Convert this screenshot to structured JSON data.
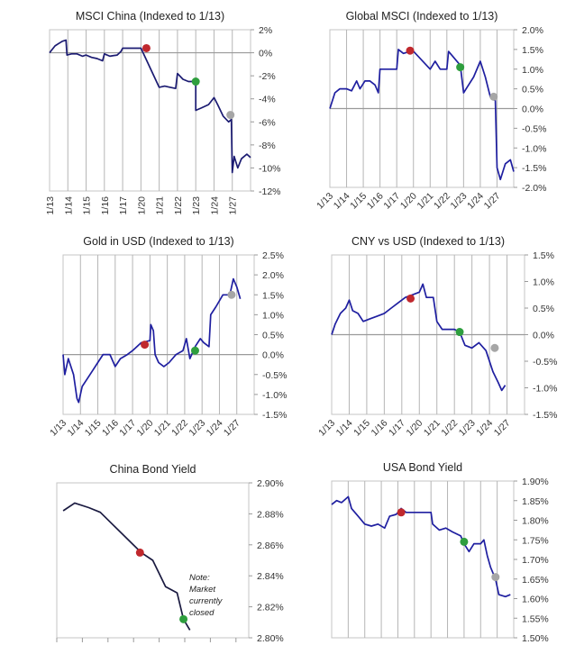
{
  "chart_data": [
    {
      "type": "line",
      "title": "MSCI China (Indexed to 1/13)",
      "categories": [
        "1/13",
        "1/14",
        "1/15",
        "1/16",
        "1/17",
        "1/20",
        "1/21",
        "1/22",
        "1/23",
        "1/24",
        "1/27"
      ],
      "xlim": [
        0,
        11
      ],
      "ylim": [
        -12,
        2
      ],
      "yticks": [
        2,
        0,
        -2,
        -4,
        -6,
        -8,
        -10,
        -12
      ],
      "yticklabels": [
        "2%",
        "0%",
        "-2%",
        "-4%",
        "-6%",
        "-8%",
        "-10%",
        "-12%"
      ],
      "zero_line": 0,
      "line_color": "#1b1b72",
      "points": [
        [
          0,
          0
        ],
        [
          0.1,
          0.2
        ],
        [
          0.3,
          0.6
        ],
        [
          0.5,
          0.8
        ],
        [
          0.7,
          1.0
        ],
        [
          0.9,
          1.1
        ],
        [
          0.95,
          -0.2
        ],
        [
          1.2,
          -0.1
        ],
        [
          1.5,
          -0.1
        ],
        [
          1.8,
          -0.3
        ],
        [
          2.0,
          -0.2
        ],
        [
          2.3,
          -0.4
        ],
        [
          2.6,
          -0.5
        ],
        [
          2.9,
          -0.7
        ],
        [
          3.0,
          -0.1
        ],
        [
          3.3,
          -0.3
        ],
        [
          3.7,
          -0.2
        ],
        [
          3.9,
          0.1
        ],
        [
          4.0,
          0.4
        ],
        [
          4.3,
          0.4
        ],
        [
          4.7,
          0.4
        ],
        [
          5.0,
          0.4
        ],
        [
          6.0,
          -3.0
        ],
        [
          6.3,
          -2.9
        ],
        [
          6.6,
          -3.0
        ],
        [
          6.9,
          -3.1
        ],
        [
          7.0,
          -1.8
        ],
        [
          7.3,
          -2.3
        ],
        [
          7.6,
          -2.5
        ],
        [
          8.0,
          -2.5
        ],
        [
          8.0,
          -5.0
        ],
        [
          8.3,
          -4.8
        ],
        [
          8.7,
          -4.5
        ],
        [
          9.0,
          -3.9
        ],
        [
          9.2,
          -4.5
        ],
        [
          9.5,
          -5.5
        ],
        [
          9.8,
          -6.0
        ],
        [
          9.95,
          -5.8
        ],
        [
          10.0,
          -10.4
        ],
        [
          10.1,
          -9.0
        ],
        [
          10.3,
          -10.0
        ],
        [
          10.5,
          -9.2
        ],
        [
          10.8,
          -8.8
        ],
        [
          11,
          -9.1
        ]
      ],
      "markers": [
        {
          "x": 5.3,
          "y": 0.4,
          "color": "#c0282d"
        },
        {
          "x": 8.0,
          "y": -2.5,
          "color": "#2e9e3e"
        },
        {
          "x": 9.9,
          "y": -5.4,
          "color": "#a6a6a6"
        }
      ]
    },
    {
      "type": "line",
      "title": "Global MSCI (Indexed to 1/13)",
      "categories": [
        "1/13",
        "1/14",
        "1/15",
        "1/16",
        "1/17",
        "1/20",
        "1/21",
        "1/22",
        "1/23",
        "1/24",
        "1/27"
      ],
      "xlim": [
        0,
        11
      ],
      "ylim": [
        -2,
        2
      ],
      "yticks": [
        2,
        1.5,
        1,
        0.5,
        0,
        -0.5,
        -1,
        -1.5,
        -2
      ],
      "yticklabels": [
        "2.0%",
        "1.5%",
        "1.0%",
        "0.5%",
        "0.0%",
        "-0.5%",
        "-1.0%",
        "-1.5%",
        "-2.0%"
      ],
      "zero_line": 0,
      "line_color": "#1f1fa0",
      "points": [
        [
          0,
          0
        ],
        [
          0.3,
          0.4
        ],
        [
          0.6,
          0.5
        ],
        [
          1,
          0.5
        ],
        [
          1.3,
          0.45
        ],
        [
          1.6,
          0.7
        ],
        [
          1.8,
          0.5
        ],
        [
          2.1,
          0.7
        ],
        [
          2.4,
          0.7
        ],
        [
          2.7,
          0.6
        ],
        [
          2.9,
          0.4
        ],
        [
          3.0,
          1.0
        ],
        [
          3.5,
          1.0
        ],
        [
          4.0,
          1.0
        ],
        [
          4.1,
          1.5
        ],
        [
          4.4,
          1.4
        ],
        [
          4.8,
          1.45
        ],
        [
          4.9,
          1.5
        ],
        [
          6.0,
          1.0
        ],
        [
          6.3,
          1.2
        ],
        [
          6.6,
          1.0
        ],
        [
          7.0,
          1.0
        ],
        [
          7.1,
          1.45
        ],
        [
          7.4,
          1.3
        ],
        [
          7.8,
          1.1
        ],
        [
          8.0,
          0.4
        ],
        [
          8.3,
          0.6
        ],
        [
          8.6,
          0.8
        ],
        [
          9.0,
          1.2
        ],
        [
          9.3,
          0.8
        ],
        [
          9.6,
          0.3
        ],
        [
          9.9,
          0.2
        ],
        [
          10.0,
          -1.5
        ],
        [
          10.2,
          -1.8
        ],
        [
          10.5,
          -1.4
        ],
        [
          10.8,
          -1.3
        ],
        [
          11,
          -1.6
        ]
      ],
      "markers": [
        {
          "x": 4.8,
          "y": 1.47,
          "color": "#c0282d"
        },
        {
          "x": 7.8,
          "y": 1.05,
          "color": "#2e9e3e"
        },
        {
          "x": 9.8,
          "y": 0.3,
          "color": "#a6a6a6"
        }
      ]
    },
    {
      "type": "line",
      "title": "Gold in USD (Indexed to 1/13)",
      "categories": [
        "1/13",
        "1/14",
        "1/15",
        "1/16",
        "1/17",
        "1/20",
        "1/21",
        "1/22",
        "1/23",
        "1/24",
        "1/27"
      ],
      "xlim": [
        0,
        11
      ],
      "ylim": [
        -1.5,
        2.5
      ],
      "yticks": [
        2.5,
        2,
        1.5,
        1,
        0.5,
        0,
        -0.5,
        -1,
        -1.5
      ],
      "yticklabels": [
        "2.5%",
        "2.0%",
        "1.5%",
        "1.0%",
        "0.5%",
        "0.0%",
        "-0.5%",
        "-1.0%",
        "-1.5%"
      ],
      "zero_line": 0,
      "line_color": "#1f1fa0",
      "points": [
        [
          0,
          0
        ],
        [
          0.1,
          -0.5
        ],
        [
          0.3,
          -0.1
        ],
        [
          0.6,
          -0.5
        ],
        [
          0.8,
          -1.1
        ],
        [
          0.9,
          -1.2
        ],
        [
          1.1,
          -0.8
        ],
        [
          1.4,
          -0.6
        ],
        [
          1.7,
          -0.4
        ],
        [
          2.0,
          -0.2
        ],
        [
          2.3,
          0
        ],
        [
          2.7,
          0
        ],
        [
          3.0,
          -0.3
        ],
        [
          3.3,
          -0.1
        ],
        [
          3.7,
          0
        ],
        [
          4.0,
          0.1
        ],
        [
          4.5,
          0.3
        ],
        [
          5.0,
          0.35
        ],
        [
          5.05,
          0.75
        ],
        [
          5.2,
          0.6
        ],
        [
          5.3,
          0
        ],
        [
          5.5,
          -0.2
        ],
        [
          5.8,
          -0.3
        ],
        [
          6.1,
          -0.2
        ],
        [
          6.5,
          0
        ],
        [
          6.9,
          0.1
        ],
        [
          7.1,
          0.4
        ],
        [
          7.3,
          -0.1
        ],
        [
          7.6,
          0.2
        ],
        [
          7.9,
          0.4
        ],
        [
          8.1,
          0.3
        ],
        [
          8.4,
          0.2
        ],
        [
          8.5,
          1.0
        ],
        [
          8.8,
          1.2
        ],
        [
          9.2,
          1.5
        ],
        [
          9.6,
          1.5
        ],
        [
          9.8,
          1.9
        ],
        [
          10.0,
          1.7
        ],
        [
          10.2,
          1.4
        ]
      ],
      "markers": [
        {
          "x": 4.7,
          "y": 0.25,
          "color": "#c0282d"
        },
        {
          "x": 7.6,
          "y": 0.1,
          "color": "#2e9e3e"
        },
        {
          "x": 9.7,
          "y": 1.5,
          "color": "#a6a6a6"
        }
      ]
    },
    {
      "type": "line",
      "title": "CNY vs USD (Indexed to 1/13)",
      "categories": [
        "1/13",
        "1/14",
        "1/15",
        "1/16",
        "1/17",
        "1/20",
        "1/21",
        "1/22",
        "1/23",
        "1/24",
        "1/27"
      ],
      "xlim": [
        0,
        11
      ],
      "ylim": [
        -1.5,
        1.5
      ],
      "yticks": [
        1.5,
        1,
        0.5,
        0,
        -0.5,
        -1,
        -1.5
      ],
      "yticklabels": [
        "1.5%",
        "1.0%",
        "0.5%",
        "0.0%",
        "-0.5%",
        "-1.0%",
        "-1.5%"
      ],
      "zero_line": 0,
      "line_color": "#1f1fa0",
      "points": [
        [
          0,
          0
        ],
        [
          0.2,
          0.2
        ],
        [
          0.5,
          0.4
        ],
        [
          0.8,
          0.5
        ],
        [
          1.0,
          0.65
        ],
        [
          1.2,
          0.45
        ],
        [
          1.5,
          0.4
        ],
        [
          1.8,
          0.25
        ],
        [
          2.2,
          0.3
        ],
        [
          2.6,
          0.35
        ],
        [
          3.0,
          0.4
        ],
        [
          3.4,
          0.5
        ],
        [
          3.8,
          0.6
        ],
        [
          4.2,
          0.7
        ],
        [
          4.6,
          0.75
        ],
        [
          5.0,
          0.8
        ],
        [
          5.2,
          0.95
        ],
        [
          5.4,
          0.7
        ],
        [
          5.8,
          0.7
        ],
        [
          6.0,
          0.25
        ],
        [
          6.3,
          0.1
        ],
        [
          6.7,
          0.1
        ],
        [
          7.0,
          0.1
        ],
        [
          7.3,
          0.05
        ],
        [
          7.6,
          -0.2
        ],
        [
          8.0,
          -0.25
        ],
        [
          8.4,
          -0.15
        ],
        [
          8.8,
          -0.3
        ],
        [
          9.2,
          -0.7
        ],
        [
          9.5,
          -0.9
        ],
        [
          9.7,
          -1.05
        ],
        [
          9.9,
          -0.95
        ]
      ],
      "markers": [
        {
          "x": 4.5,
          "y": 0.68,
          "color": "#c0282d"
        },
        {
          "x": 7.3,
          "y": 0.05,
          "color": "#2e9e3e"
        },
        {
          "x": 9.3,
          "y": -0.25,
          "color": "#a6a6a6"
        }
      ]
    },
    {
      "type": "line",
      "title": "China Bond Yield",
      "categories": [],
      "xlim": [
        0,
        15
      ],
      "ylim": [
        2.8,
        2.9
      ],
      "yticks": [
        2.9,
        2.88,
        2.86,
        2.84,
        2.82,
        2.8
      ],
      "yticklabels": [
        "2.90%",
        "2.88%",
        "2.86%",
        "2.84%",
        "2.82%",
        "2.80%"
      ],
      "line_color": "#1a1a40",
      "points": [
        [
          0.5,
          2.882
        ],
        [
          1.4,
          2.887
        ],
        [
          2.5,
          2.884
        ],
        [
          3.4,
          2.881
        ],
        [
          6.6,
          2.855
        ],
        [
          7.5,
          2.85
        ],
        [
          8.5,
          2.833
        ],
        [
          9.4,
          2.829
        ],
        [
          9.9,
          2.812
        ],
        [
          10.4,
          2.805
        ]
      ],
      "markers": [
        {
          "x": 6.5,
          "y": 2.855,
          "color": "#c0282d"
        },
        {
          "x": 9.9,
          "y": 2.812,
          "color": "#2e9e3e"
        }
      ],
      "annotation": {
        "lines": [
          "Note:",
          "Market",
          "currently",
          "closed"
        ]
      }
    },
    {
      "type": "line",
      "title": "USA Bond Yield",
      "categories": [],
      "xlim": [
        0,
        11
      ],
      "ylim": [
        1.5,
        1.9
      ],
      "yticks": [
        1.9,
        1.85,
        1.8,
        1.75,
        1.7,
        1.65,
        1.6,
        1.55,
        1.5
      ],
      "yticklabels": [
        "1.90%",
        "1.85%",
        "1.80%",
        "1.75%",
        "1.70%",
        "1.65%",
        "1.60%",
        "1.55%",
        "1.50%"
      ],
      "line_color": "#1f1fa0",
      "points": [
        [
          0,
          1.84
        ],
        [
          0.3,
          1.85
        ],
        [
          0.6,
          1.845
        ],
        [
          1.0,
          1.86
        ],
        [
          1.2,
          1.83
        ],
        [
          1.6,
          1.81
        ],
        [
          2.0,
          1.79
        ],
        [
          2.4,
          1.785
        ],
        [
          2.8,
          1.79
        ],
        [
          3.2,
          1.78
        ],
        [
          3.5,
          1.81
        ],
        [
          3.9,
          1.815
        ],
        [
          4.2,
          1.83
        ],
        [
          4.5,
          1.82
        ],
        [
          5.0,
          1.82
        ],
        [
          6.0,
          1.82
        ],
        [
          6.1,
          1.79
        ],
        [
          6.5,
          1.775
        ],
        [
          6.9,
          1.78
        ],
        [
          7.3,
          1.77
        ],
        [
          7.8,
          1.76
        ],
        [
          8.0,
          1.74
        ],
        [
          8.3,
          1.72
        ],
        [
          8.6,
          1.74
        ],
        [
          9.0,
          1.74
        ],
        [
          9.2,
          1.75
        ],
        [
          9.4,
          1.71
        ],
        [
          9.6,
          1.68
        ],
        [
          9.9,
          1.65
        ],
        [
          10.1,
          1.61
        ],
        [
          10.5,
          1.605
        ],
        [
          10.8,
          1.61
        ]
      ],
      "markers": [
        {
          "x": 4.2,
          "y": 1.82,
          "color": "#c0282d"
        },
        {
          "x": 8.0,
          "y": 1.745,
          "color": "#2e9e3e"
        },
        {
          "x": 9.9,
          "y": 1.655,
          "color": "#a6a6a6"
        }
      ]
    }
  ]
}
